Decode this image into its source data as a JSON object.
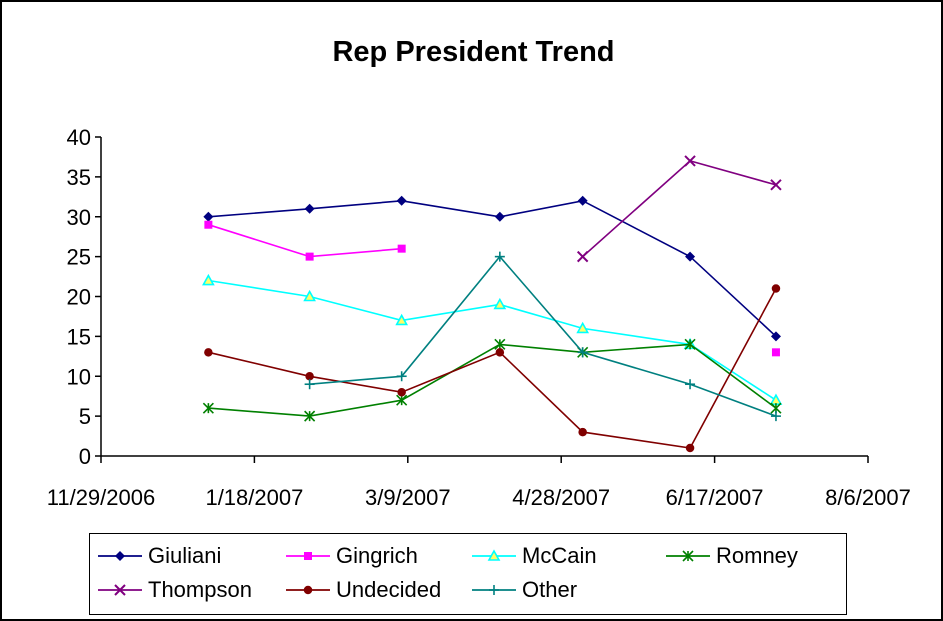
{
  "chart_data": {
    "type": "line",
    "title": "Rep President Trend",
    "xlabel": "",
    "ylabel": "",
    "ylim": [
      0,
      40
    ],
    "yticks": [
      0,
      5,
      10,
      15,
      20,
      25,
      30,
      35,
      40
    ],
    "xlim": [
      "11/29/2006",
      "8/6/2007"
    ],
    "xticks": [
      "11/29/2006",
      "1/18/2007",
      "3/9/2007",
      "4/28/2007",
      "6/17/2007",
      "8/6/2007"
    ],
    "grid": false,
    "legend_position": "bottom",
    "series": [
      {
        "name": "Giuliani",
        "color": "#000080",
        "marker": "diamond",
        "x": [
          "2007-01-03",
          "2007-02-05",
          "2007-03-07",
          "2007-04-08",
          "2007-05-05",
          "2007-06-09",
          "2007-07-07"
        ],
        "y": [
          30,
          31,
          32,
          30,
          32,
          25,
          15
        ]
      },
      {
        "name": "Gingrich",
        "color": "#ff00ff",
        "marker": "square",
        "x": [
          "2007-01-03",
          "2007-02-05",
          "2007-03-07",
          "2007-04-08",
          "2007-05-05",
          "2007-06-09",
          "2007-07-07"
        ],
        "y": [
          29,
          25,
          26,
          null,
          null,
          null,
          13
        ]
      },
      {
        "name": "McCain",
        "color": "#00ffff",
        "marker": "triangle",
        "x": [
          "2007-01-03",
          "2007-02-05",
          "2007-03-07",
          "2007-04-08",
          "2007-05-05",
          "2007-06-09",
          "2007-07-07"
        ],
        "y": [
          22,
          20,
          17,
          19,
          16,
          14,
          7
        ]
      },
      {
        "name": "Romney",
        "color": "#008000",
        "marker": "asterisk",
        "x": [
          "2007-01-03",
          "2007-02-05",
          "2007-03-07",
          "2007-04-08",
          "2007-05-05",
          "2007-06-09",
          "2007-07-07"
        ],
        "y": [
          6,
          5,
          7,
          14,
          13,
          14,
          6
        ]
      },
      {
        "name": "Thompson",
        "color": "#800080",
        "marker": "x",
        "x": [
          "2007-01-03",
          "2007-02-05",
          "2007-03-07",
          "2007-04-08",
          "2007-05-05",
          "2007-06-09",
          "2007-07-07"
        ],
        "y": [
          null,
          null,
          null,
          null,
          25,
          37,
          34
        ]
      },
      {
        "name": "Undecided",
        "color": "#800000",
        "marker": "circle",
        "x": [
          "2007-01-03",
          "2007-02-05",
          "2007-03-07",
          "2007-04-08",
          "2007-05-05",
          "2007-06-09",
          "2007-07-07"
        ],
        "y": [
          13,
          10,
          8,
          13,
          3,
          1,
          21
        ]
      },
      {
        "name": "Other",
        "color": "#008080",
        "marker": "plus",
        "x": [
          "2007-01-03",
          "2007-02-05",
          "2007-03-07",
          "2007-04-08",
          "2007-05-05",
          "2007-06-09",
          "2007-07-07"
        ],
        "y": [
          null,
          9,
          10,
          25,
          13,
          9,
          5
        ]
      }
    ]
  }
}
